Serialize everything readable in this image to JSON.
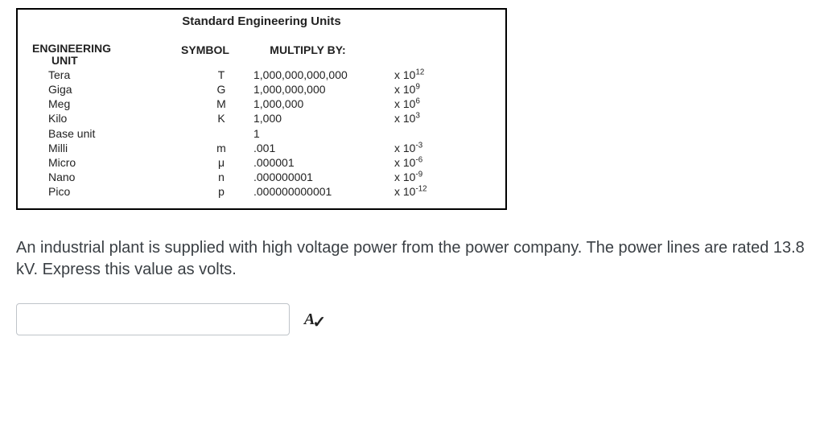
{
  "table": {
    "title": "Standard Engineering Units",
    "headers": {
      "unit_top": "ENGINEERING",
      "unit_bot": "UNIT",
      "symbol": "SYMBOL",
      "multiply": "MULTIPLY BY:"
    },
    "rows": [
      {
        "unit": "Tera",
        "symbol": "T",
        "multiply": "1,000,000,000,000",
        "power": "x 10",
        "exp": "12"
      },
      {
        "unit": "Giga",
        "symbol": "G",
        "multiply": "1,000,000,000",
        "power": "x 10",
        "exp": "9"
      },
      {
        "unit": "Meg",
        "symbol": "M",
        "multiply": "1,000,000",
        "power": "x 10",
        "exp": "6"
      },
      {
        "unit": "Kilo",
        "symbol": "K",
        "multiply": "1,000",
        "power": "x 10",
        "exp": "3"
      },
      {
        "unit": "Base unit",
        "symbol": "",
        "multiply": "1",
        "power": "",
        "exp": ""
      },
      {
        "unit": "Milli",
        "symbol": "m",
        "multiply": ".001",
        "power": "x 10",
        "exp": "-3"
      },
      {
        "unit": "Micro",
        "symbol": "μ",
        "multiply": ".000001",
        "power": "x 10",
        "exp": "-6"
      },
      {
        "unit": "Nano",
        "symbol": "n",
        "multiply": ".000000001",
        "power": "x 10",
        "exp": "-9"
      },
      {
        "unit": "Pico",
        "symbol": "p",
        "multiply": ".000000000001",
        "power": "x 10",
        "exp": "-12"
      }
    ]
  },
  "question": "An industrial plant is supplied with high voltage power from the power company. The power lines are rated 13.8 kV. Express this value as volts.",
  "answer_value": "",
  "check_icon": {
    "a": "A",
    "tick": "✓"
  }
}
